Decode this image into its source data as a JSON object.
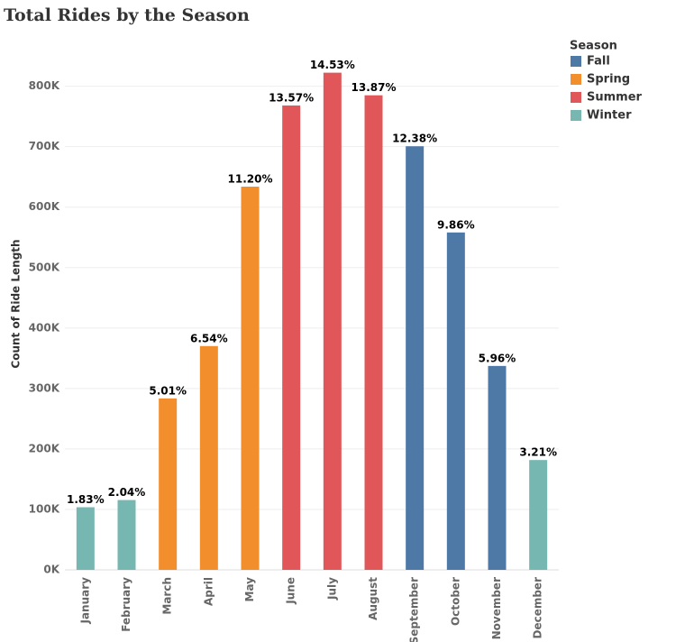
{
  "chart_data": {
    "type": "bar",
    "title": "Total Rides by the Season",
    "y_label": "Count of Ride Length",
    "legend_title": "Season",
    "categories": [
      "January",
      "February",
      "March",
      "April",
      "May",
      "June",
      "July",
      "August",
      "September",
      "October",
      "November",
      "December"
    ],
    "series": [
      {
        "name": "Fall",
        "color": "#4e79a7",
        "values": [
          null,
          null,
          null,
          null,
          null,
          null,
          null,
          null,
          700700,
          558100,
          337300,
          null
        ],
        "value_labels": [
          null,
          null,
          null,
          null,
          null,
          null,
          null,
          null,
          "12.38%",
          "9.86%",
          "5.96%",
          null
        ]
      },
      {
        "name": "Spring",
        "color": "#f28e2b",
        "values": [
          null,
          null,
          283600,
          370200,
          633900,
          null,
          null,
          null,
          null,
          null,
          null,
          null
        ],
        "value_labels": [
          null,
          null,
          "5.01%",
          "6.54%",
          "11.20%",
          null,
          null,
          null,
          null,
          null,
          null,
          null
        ]
      },
      {
        "name": "Summer",
        "color": "#e15759",
        "values": [
          null,
          null,
          null,
          null,
          null,
          768100,
          822400,
          785000,
          null,
          null,
          null,
          null
        ],
        "value_labels": [
          null,
          null,
          null,
          null,
          null,
          "13.57%",
          "14.53%",
          "13.87%",
          null,
          null,
          null,
          null
        ]
      },
      {
        "name": "Winter",
        "color": "#76b7b2",
        "values": [
          103600,
          115500,
          null,
          null,
          null,
          null,
          null,
          null,
          null,
          null,
          null,
          181700
        ],
        "value_labels": [
          "1.83%",
          "2.04%",
          null,
          null,
          null,
          null,
          null,
          null,
          null,
          null,
          null,
          "3.21%"
        ]
      }
    ],
    "ylim": [
      0,
      880000
    ],
    "yticks": [
      {
        "value": 0,
        "label": "0K"
      },
      {
        "value": 100000,
        "label": "100K"
      },
      {
        "value": 200000,
        "label": "200K"
      },
      {
        "value": 300000,
        "label": "300K"
      },
      {
        "value": 400000,
        "label": "400K"
      },
      {
        "value": 500000,
        "label": "500K"
      },
      {
        "value": 600000,
        "label": "600K"
      },
      {
        "value": 700000,
        "label": "700K"
      },
      {
        "value": 800000,
        "label": "800K"
      }
    ],
    "grid": true
  }
}
